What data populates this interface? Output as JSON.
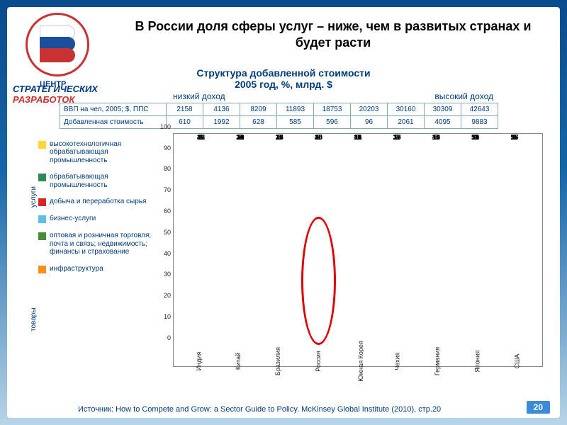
{
  "title": "В России доля сферы услуг – ниже, чем в развитых странах и будет расти",
  "centr": "ЦЕНТР",
  "strategic1": "СТРАТЕГИЧЕСКИХ",
  "strategic2": "РАЗРАБОТОК",
  "subtitle1": "Структура добавленной стоимости",
  "subtitle2": "2005 год, %, млрд. $",
  "income_low": "низкий доход",
  "income_high": "высокий доход",
  "table": {
    "row1_label": "ВВП на чел, 2005; $, ППС",
    "row2_label": "Добавленная стоимость",
    "row1": [
      "2158",
      "4136",
      "8209",
      "11893",
      "18753",
      "20203",
      "30160",
      "30309",
      "42643"
    ],
    "row2": [
      "610",
      "1992",
      "628",
      "585",
      "596",
      "96",
      "2061",
      "4095",
      "9883"
    ]
  },
  "legend": [
    {
      "color": "#ffd633",
      "label": "высокотехнологичная обрабатывающая промышленность"
    },
    {
      "color": "#2e8b57",
      "label": "обрабатывающая промышленность"
    },
    {
      "color": "#d62728",
      "label": "добыча и переработка сырья"
    },
    {
      "color": "#5fbfe0",
      "label": "бизнес-услуги"
    },
    {
      "color": "#4a8c3a",
      "label": "оптовая и розничная торговля; почта и связь; недвижимость; финансы и страхование"
    },
    {
      "color": "#ff8c1a",
      "label": "инфраструктура"
    }
  ],
  "side_services": "услуги",
  "side_goods": "товары",
  "chart": {
    "ylim": [
      0,
      100
    ],
    "ytick_step": 10,
    "bar_colors": {
      "infra": "#ff8c1a",
      "trade": "#4a8c3a",
      "biz": "#5fbfe0",
      "mining": "#d62728",
      "manuf": "#2e8b57",
      "hitech": "#ffd633"
    },
    "highlight_index": 3,
    "countries": [
      "Индия",
      "Китай",
      "Бразилия",
      "Россия",
      "Южная Корея",
      "Чехия",
      "Германия",
      "Япония",
      "США"
    ],
    "data": [
      {
        "infra": 13,
        "trade": 43,
        "biz": 5,
        "mining": 32,
        "manuf": 4,
        "hitech": 3
      },
      {
        "infra": 10,
        "trade": 28,
        "biz": 7,
        "mining": 31,
        "manuf": 16,
        "hitech": 8
      },
      {
        "infra": 15,
        "trade": 35,
        "biz": 8,
        "mining": 24,
        "manuf": 13,
        "hitech": 5
      },
      {
        "infra": 15,
        "trade": 40,
        "biz": 6,
        "mining": 30,
        "manuf": 6,
        "hitech": 2,
        "topgap": 1
      },
      {
        "infra": 11,
        "trade": 44,
        "biz": 6,
        "mining": 16,
        "manuf": 12,
        "hitech": 11
      },
      {
        "infra": 16,
        "trade": 39,
        "biz": 9,
        "mining": 17,
        "manuf": 15,
        "hitech": 3,
        "topgap": 1
      },
      {
        "infra": 10,
        "trade": 48,
        "biz": 13,
        "mining": 10,
        "manuf": 14,
        "hitech": 5
      },
      {
        "infra": 11,
        "trade": 54,
        "biz": 9,
        "mining": 10,
        "manuf": 11,
        "hitech": 4,
        "topgap": 1
      },
      {
        "infra": 8,
        "trade": 57,
        "biz": 9,
        "mining": 15,
        "manuf": 6,
        "hitech": 4,
        "topgap": 1
      }
    ]
  },
  "source": "Источник: How to Compete and Grow: a Sector Guide to Policy. McKinsey Global Institute (2010), стр.20",
  "page": "20"
}
